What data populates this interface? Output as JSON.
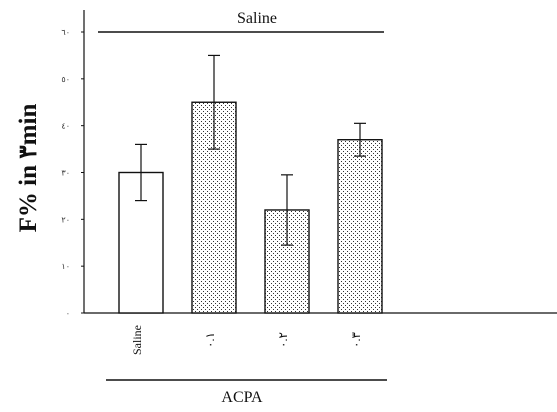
{
  "chart_data": {
    "type": "bar",
    "title": "",
    "xlabel": "",
    "ylabel": "F% in ٣min",
    "ylim": [
      0,
      60
    ],
    "yticks": [
      {
        "value": 0,
        "label": "٠"
      },
      {
        "value": 10,
        "label": "١٠"
      },
      {
        "value": 20,
        "label": "٢٠"
      },
      {
        "value": 30,
        "label": "٣٠"
      },
      {
        "value": 40,
        "label": "٤٠"
      },
      {
        "value": 50,
        "label": "٥٠"
      },
      {
        "value": 60,
        "label": "٦٠"
      }
    ],
    "categories": [
      "Saline",
      "٠.١",
      "٠.٢",
      "٠.٣"
    ],
    "values": [
      30,
      45,
      22,
      37
    ],
    "errors": [
      6,
      10,
      7.5,
      3.5
    ],
    "patterns": [
      "open",
      "dotted",
      "dotted",
      "dotted"
    ],
    "group_labels": {
      "top": "Saline",
      "bottom": "ACPA"
    }
  }
}
